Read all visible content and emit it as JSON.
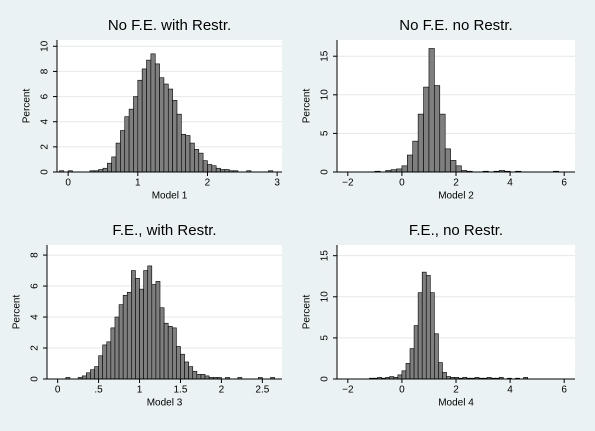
{
  "chart_data": [
    {
      "type": "histogram",
      "title": "No F.E. with Restr.",
      "x_label": "Model 1",
      "y_label": "Percent",
      "color": "#7f7f7f",
      "grid": true,
      "xlim": [
        -0.16,
        3.07
      ],
      "ylim": [
        0,
        10.5
      ],
      "xticks": [
        0,
        1,
        2,
        3
      ],
      "yticks": [
        0,
        2,
        4,
        6,
        8,
        10
      ],
      "bins": [
        -0.125,
        -0.0625,
        0,
        0.0625,
        0.125,
        0.1875,
        0.25,
        0.3125,
        0.375,
        0.4375,
        0.5,
        0.5625,
        0.625,
        0.6875,
        0.75,
        0.8125,
        0.875,
        0.9375,
        1,
        1.0625,
        1.125,
        1.1875,
        1.25,
        1.3125,
        1.375,
        1.4375,
        1.5,
        1.5625,
        1.625,
        1.6875,
        1.75,
        1.8125,
        1.875,
        1.9375,
        2,
        2.0625,
        2.125,
        2.1875,
        2.25,
        2.3125,
        2.375,
        2.4375,
        2.5,
        2.5625,
        2.625,
        2.6875,
        2.75,
        2.8125,
        2.875,
        2.9375,
        3
      ],
      "values": [
        0.1,
        0,
        0.1,
        0,
        0,
        0,
        0,
        0.1,
        0.1,
        0.2,
        0.3,
        0.7,
        1.2,
        2.3,
        3.3,
        4.4,
        5.0,
        6.0,
        7.3,
        8.2,
        8.9,
        9.4,
        8.6,
        7.5,
        7.0,
        6.6,
        5.7,
        4.6,
        3.0,
        2.9,
        2.3,
        1.8,
        1.5,
        0.9,
        0.6,
        0.5,
        0.3,
        0.2,
        0.2,
        0.1,
        0.1,
        0,
        0,
        0.1,
        0,
        0,
        0,
        0,
        0.1,
        0
      ]
    },
    {
      "type": "histogram",
      "title": "No F.E. no Restr.",
      "x_label": "Model 2",
      "y_label": "Percent",
      "color": "#7f7f7f",
      "grid": true,
      "xlim": [
        -2.4,
        6.4
      ],
      "ylim": [
        0,
        17.1
      ],
      "xticks": [
        {
          "value": -2,
          "label": "−2"
        },
        0,
        2,
        4,
        6
      ],
      "yticks": [
        0,
        5,
        10,
        15
      ],
      "bins": [
        -1,
        -0.8,
        -0.6,
        -0.4,
        -0.2,
        0,
        0.2,
        0.4,
        0.6,
        0.8,
        1,
        1.2,
        1.4,
        1.6,
        1.8,
        2,
        2.2,
        2.4,
        2.6,
        2.8,
        3,
        3.2,
        3.4,
        3.6,
        3.8,
        4,
        4.2,
        4.4,
        4.6,
        4.8,
        5,
        5.2,
        5.4,
        5.6,
        5.8,
        6
      ],
      "values": [
        0.1,
        0,
        0.2,
        0.3,
        0.4,
        0.8,
        2.2,
        4.0,
        7.5,
        11.0,
        16.0,
        11.2,
        7.5,
        3.0,
        1.5,
        0.8,
        0.2,
        0.1,
        0,
        0,
        0.1,
        0,
        0.1,
        0.2,
        0.1,
        0,
        0.1,
        0,
        0,
        0,
        0,
        0,
        0,
        0.1,
        0
      ]
    },
    {
      "type": "histogram",
      "title": "F.E., with Restr.",
      "x_label": "Model 3",
      "y_label": "Percent",
      "color": "#7f7f7f",
      "grid": true,
      "xlim": [
        -0.13,
        2.74
      ],
      "ylim": [
        0,
        8.65
      ],
      "xticks": [
        0,
        {
          "value": 0.5,
          "label": ".5"
        },
        1,
        1.5,
        2,
        2.5
      ],
      "yticks": [
        0,
        2,
        4,
        6,
        8
      ],
      "bins": [
        0.1,
        0.15,
        0.2,
        0.25,
        0.3,
        0.35,
        0.4,
        0.45,
        0.5,
        0.55,
        0.6,
        0.65,
        0.7,
        0.75,
        0.8,
        0.85,
        0.9,
        0.95,
        1,
        1.05,
        1.1,
        1.15,
        1.2,
        1.25,
        1.3,
        1.35,
        1.4,
        1.45,
        1.5,
        1.55,
        1.6,
        1.65,
        1.7,
        1.75,
        1.8,
        1.85,
        1.9,
        1.95,
        2,
        2.05,
        2.1,
        2.15,
        2.2,
        2.25,
        2.3,
        2.35,
        2.4,
        2.45,
        2.5,
        2.55,
        2.6,
        2.65,
        2.7
      ],
      "values": [
        0.1,
        0,
        0,
        0.1,
        0.2,
        0.4,
        0.6,
        0.8,
        1.5,
        2.2,
        2.4,
        3.3,
        4.0,
        4.8,
        5.4,
        5.6,
        7.0,
        6.5,
        5.8,
        7.0,
        7.3,
        6.1,
        6.3,
        4.6,
        3.6,
        3.4,
        3.3,
        2.1,
        1.6,
        1.1,
        0.8,
        0.5,
        0.3,
        0.3,
        0.2,
        0.1,
        0.1,
        0.1,
        0,
        0.1,
        0,
        0,
        0.1,
        0,
        0,
        0,
        0,
        0.1,
        0,
        0,
        0.1,
        0
      ]
    },
    {
      "type": "histogram",
      "title": "F.E., no Restr.",
      "x_label": "Model 4",
      "y_label": "Percent",
      "color": "#7f7f7f",
      "grid": true,
      "xlim": [
        -2.4,
        6.4
      ],
      "ylim": [
        0,
        16.3
      ],
      "xticks": [
        {
          "value": -2,
          "label": "−2"
        },
        0,
        2,
        4,
        6
      ],
      "yticks": [
        0,
        5,
        10,
        15
      ],
      "bins": [
        -1.2,
        -1.05,
        -0.9,
        -0.75,
        -0.6,
        -0.45,
        -0.3,
        -0.15,
        0,
        0.15,
        0.3,
        0.45,
        0.6,
        0.75,
        0.9,
        1.05,
        1.2,
        1.35,
        1.5,
        1.65,
        1.8,
        1.95,
        2.1,
        2.25,
        2.4,
        2.55,
        2.7,
        2.85,
        3,
        3.15,
        3.3,
        3.45,
        3.6,
        3.75,
        3.9,
        4.05,
        4.2,
        4.35,
        4.5,
        4.65,
        4.8
      ],
      "values": [
        0.1,
        0.1,
        0.2,
        0.1,
        0.2,
        0.3,
        0.2,
        0.5,
        1.0,
        1.9,
        3.7,
        6.5,
        10.5,
        13.0,
        12.6,
        10.5,
        5.5,
        2.0,
        0.8,
        0.3,
        0.2,
        0.2,
        0.1,
        0.2,
        0.1,
        0.1,
        0.2,
        0.1,
        0.1,
        0.2,
        0.1,
        0.1,
        0.2,
        0,
        0.1,
        0,
        0.1,
        0,
        0.2,
        0
      ]
    }
  ]
}
